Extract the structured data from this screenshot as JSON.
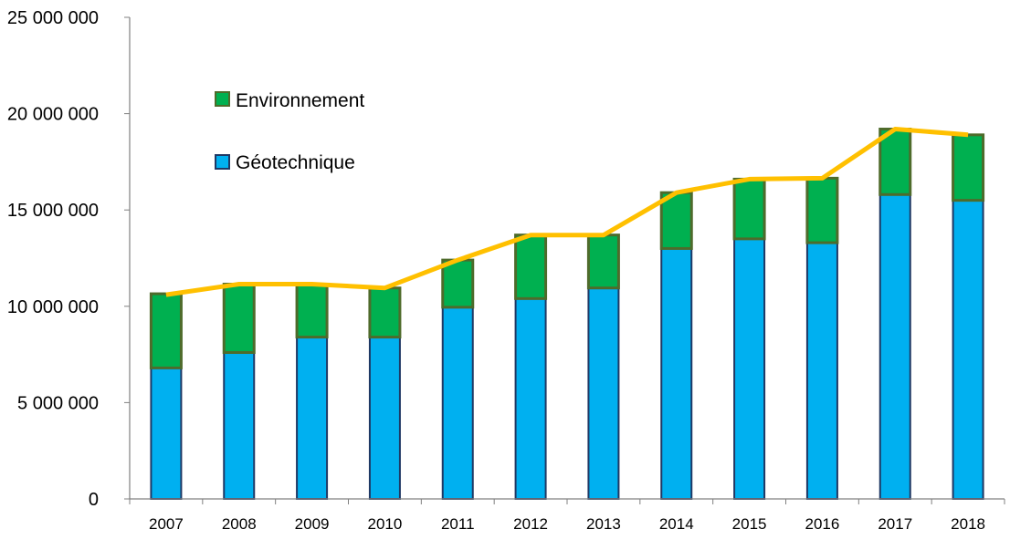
{
  "chart_data": {
    "type": "bar",
    "stacked": true,
    "title": "",
    "xlabel": "",
    "ylabel": "",
    "ylim": [
      0,
      25000000
    ],
    "yticks": [
      0,
      5000000,
      10000000,
      15000000,
      20000000,
      25000000
    ],
    "ytick_labels": [
      "0",
      "5 000 000",
      "10 000 000",
      "15 000 000",
      "20 000 000",
      "25 000 000"
    ],
    "categories": [
      "2007",
      "2008",
      "2009",
      "2010",
      "2011",
      "2012",
      "2013",
      "2014",
      "2015",
      "2016",
      "2017",
      "2018"
    ],
    "series": [
      {
        "name": "Géotechnique",
        "color": "#00b0f0",
        "edge": "#1f3864",
        "values": [
          6800000,
          7600000,
          8400000,
          8400000,
          9950000,
          10400000,
          10950000,
          13000000,
          13500000,
          13300000,
          15800000,
          15500000
        ]
      },
      {
        "name": "Environnement",
        "color": "#00b050",
        "edge": "#4e6b2b",
        "values": [
          3850000,
          3550000,
          2750000,
          2550000,
          2450000,
          3300000,
          2750000,
          2900000,
          3100000,
          3350000,
          3400000,
          3400000
        ]
      }
    ],
    "total_line": {
      "color": "#ffc000",
      "values": [
        10600000,
        11150000,
        11150000,
        10950000,
        12400000,
        13700000,
        13700000,
        15900000,
        16600000,
        16650000,
        19200000,
        18900000
      ]
    },
    "legend": [
      "Environnement",
      "Géotechnique"
    ],
    "legend_position": "upper-left",
    "grid": false
  }
}
